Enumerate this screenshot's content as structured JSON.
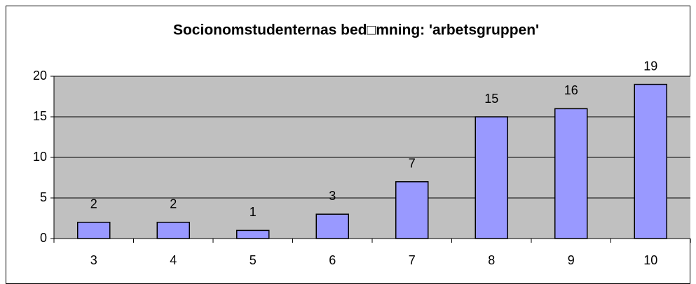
{
  "chart_data": {
    "type": "bar",
    "title": "Socionomstudenternas bed□mning: 'arbetsgruppen'",
    "categories": [
      "3",
      "4",
      "5",
      "6",
      "7",
      "8",
      "9",
      "10"
    ],
    "values": [
      2,
      2,
      1,
      3,
      7,
      15,
      16,
      19
    ],
    "color": "#9999ff",
    "ylim": [
      0,
      20
    ],
    "yticks": [
      0,
      5,
      10,
      15,
      20
    ],
    "grid": true,
    "show_value_labels": true
  }
}
